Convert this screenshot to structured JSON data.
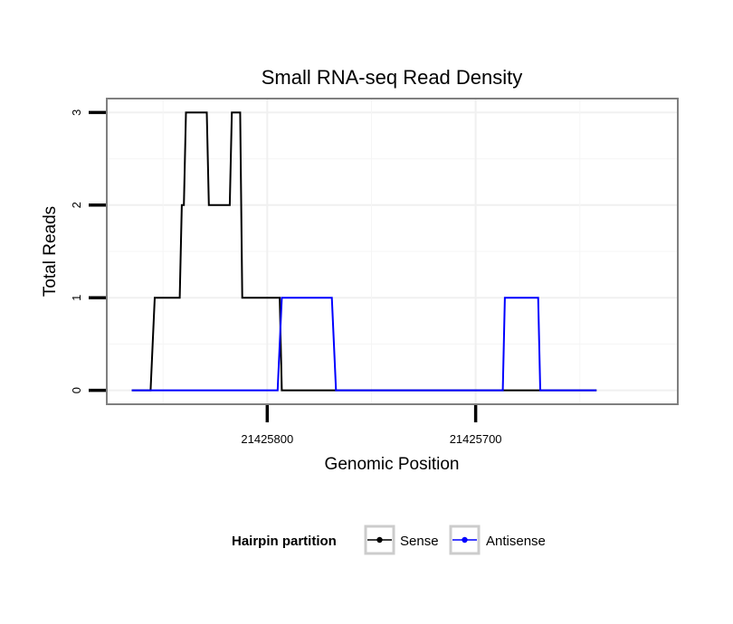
{
  "chart_data": {
    "type": "line",
    "title": "Small RNA-seq Read Density",
    "xlabel": "Genomic Position",
    "ylabel": "Total Reads",
    "x_reversed": true,
    "xlim": [
      21425877,
      21425603
    ],
    "ylim": [
      -0.15,
      3.15
    ],
    "x_ticks": [
      21425800,
      21425700
    ],
    "x_tick_labels": [
      "21425800",
      "21425700"
    ],
    "y_ticks": [
      0,
      1,
      2,
      3
    ],
    "y_tick_labels": [
      "0",
      "1",
      "2",
      "3"
    ],
    "grid": true,
    "legend": {
      "title": "Hairpin partition",
      "position": "bottom",
      "entries": [
        "Sense",
        "Antisense"
      ]
    },
    "series": [
      {
        "name": "Sense",
        "color": "#000000",
        "x": [
          21425865,
          21425856,
          21425854,
          21425842,
          21425841,
          21425840,
          21425839,
          21425829,
          21425828,
          21425818,
          21425817,
          21425813,
          21425812,
          21425808,
          21425794,
          21425793,
          21425642
        ],
        "y": [
          0,
          0,
          1,
          1,
          2,
          2,
          3,
          3,
          2,
          2,
          3,
          3,
          1,
          1,
          1,
          0,
          0
        ]
      },
      {
        "name": "Antisense",
        "color": "#0000ff",
        "x": [
          21425865,
          21425795,
          21425793,
          21425769,
          21425767,
          21425687,
          21425686,
          21425670,
          21425669,
          21425642
        ],
        "y": [
          0,
          0,
          1,
          1,
          0,
          0,
          1,
          1,
          0,
          0
        ]
      }
    ]
  }
}
